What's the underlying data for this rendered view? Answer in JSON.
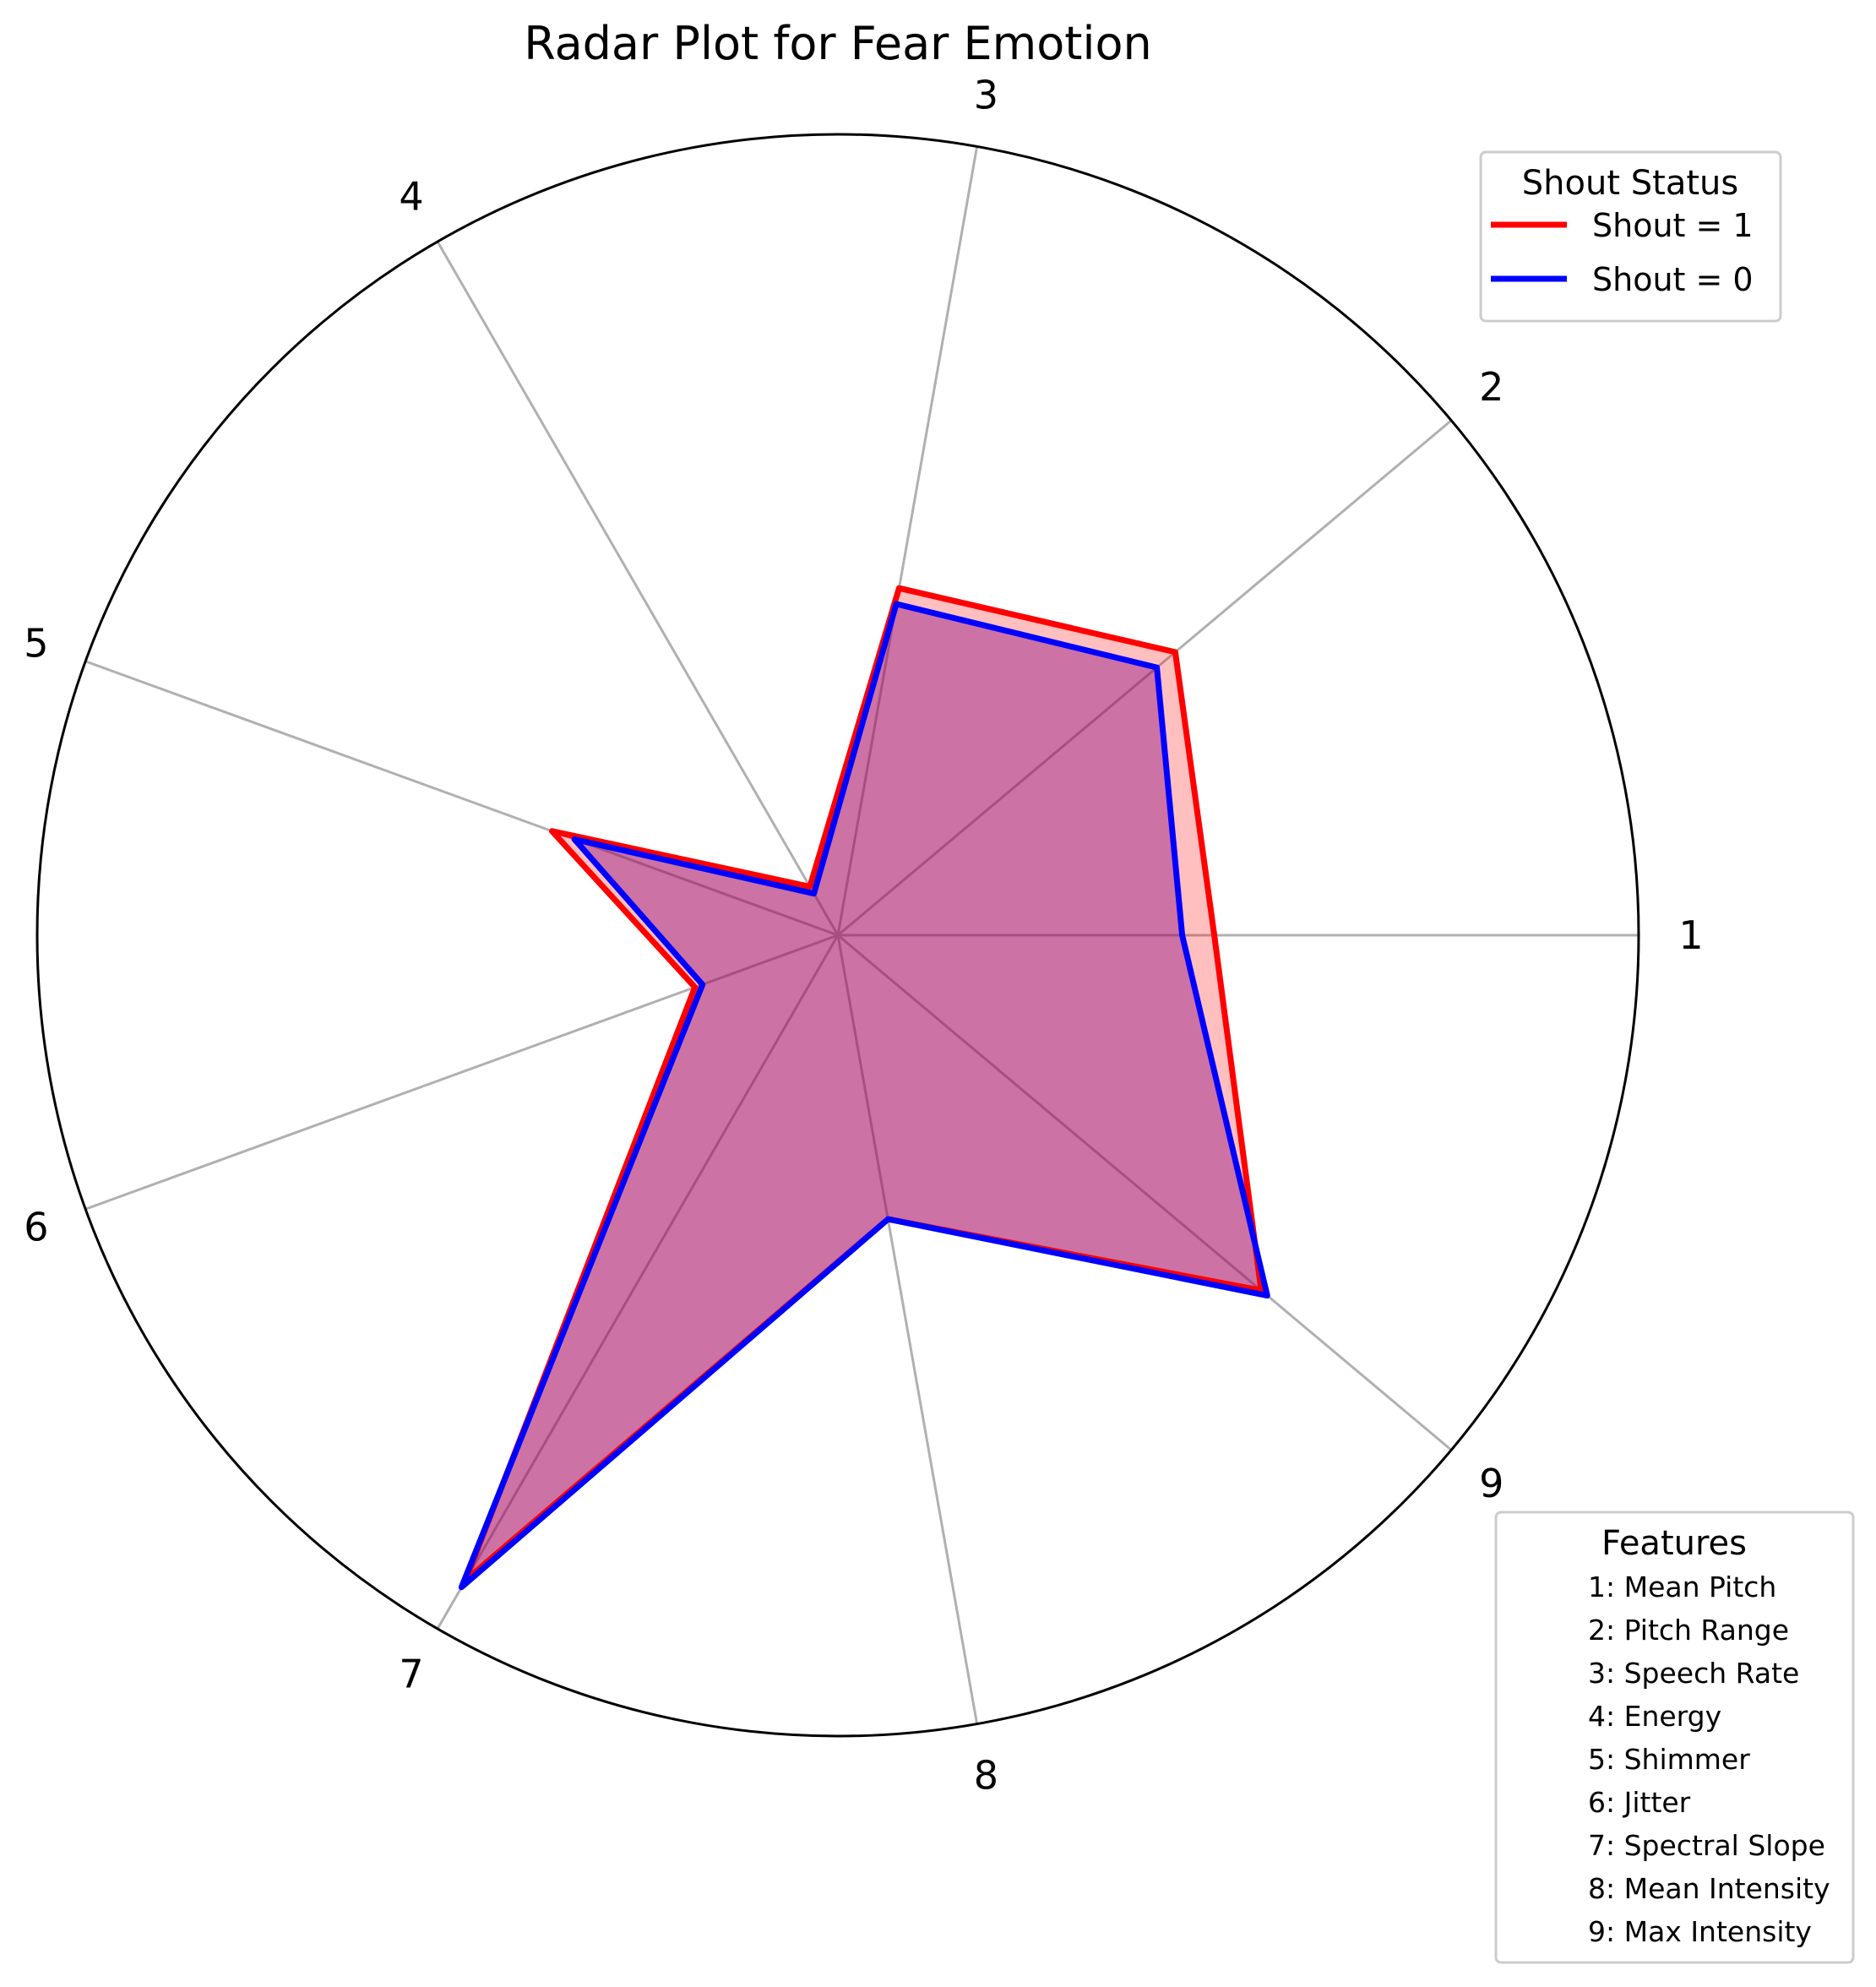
{
  "chart_data": {
    "type": "radar",
    "title": "Radar Plot for Fear Emotion",
    "axes": [
      "1",
      "2",
      "3",
      "4",
      "5",
      "6",
      "7",
      "8",
      "9"
    ],
    "rmax": 1.0,
    "grid": true,
    "series": [
      {
        "name": "Shout = 1",
        "color": "#ff0000",
        "fill": "#ff0000",
        "fill_alpha": 0.25,
        "values": [
          0.47,
          0.55,
          0.44,
          0.07,
          0.38,
          0.19,
          0.93,
          0.36,
          0.69
        ]
      },
      {
        "name": "Shout = 0",
        "color": "#0000ff",
        "fill": "#800080",
        "fill_alpha": 0.4,
        "values": [
          0.43,
          0.52,
          0.42,
          0.06,
          0.35,
          0.18,
          0.94,
          0.36,
          0.7
        ]
      }
    ],
    "legend_status": {
      "title": "Shout Status",
      "entries": [
        "Shout = 1",
        "Shout = 0"
      ],
      "placement": "top-right"
    },
    "legend_features": {
      "title": "Features",
      "entries": [
        "1: Mean Pitch",
        "2: Pitch Range",
        "3: Speech Rate",
        "4: Energy",
        "5: Shimmer",
        "6: Jitter",
        "7: Spectral Slope",
        "8: Mean Intensity",
        "9: Max Intensity"
      ],
      "placement": "bottom-right"
    }
  }
}
